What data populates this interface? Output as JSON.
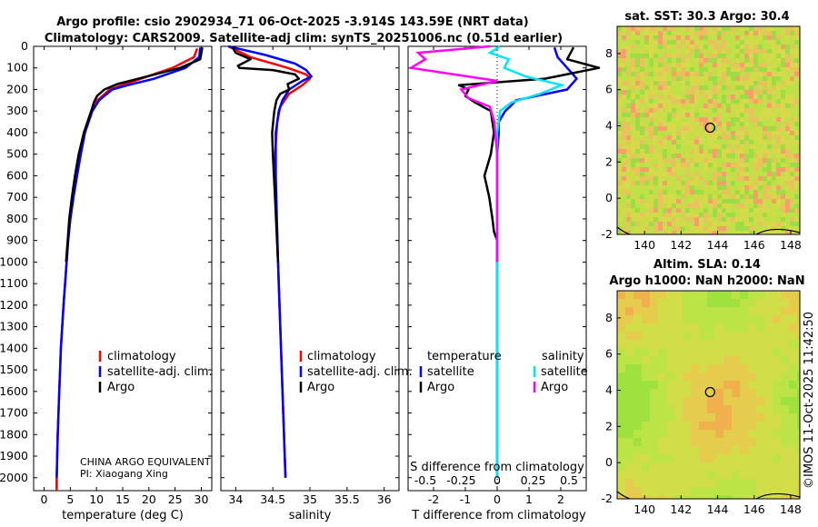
{
  "figure": {
    "title_line1": "Argo profile: csio 2902934_71 06-Oct-2025 -3.914S 143.59E (NRT data)",
    "title_line2": "Climatology: CARS2009. Satellite-adj clim: synTS_20251006.nc (0.51d earlier)",
    "sst_title": "sat. SST: 30.3 Argo: 30.4",
    "sla_title1": "Altim. SLA: 0.14",
    "sla_title2": "Argo h1000: NaN h2000: NaN",
    "timestamp": "©IMOS 11-Oct-2025 11:42:50",
    "owner": "CHINA ARGO EQUIVALENT",
    "pi": "PI: Xiaogang Xing",
    "s_diff_label": "S difference from climatology",
    "colors": {
      "climatology": "#ff0000",
      "satellite": "#0000ff",
      "argo": "#000000",
      "satellite_s": "#00e5ff",
      "argo_s": "#ff00ff"
    }
  },
  "depth_ticks": [
    "0",
    "100",
    "200",
    "300",
    "400",
    "500",
    "600",
    "700",
    "800",
    "900",
    "1000",
    "1100",
    "1200",
    "1300",
    "1400",
    "1500",
    "1600",
    "1700",
    "1800",
    "1900",
    "2000"
  ],
  "chart_data": [
    {
      "type": "line",
      "name": "temperature",
      "xlabel": "temperature (deg C)",
      "ylabel": "depth",
      "xlim": [
        -2,
        32
      ],
      "ylim": [
        2060,
        0
      ],
      "xticks": [
        "0",
        "5",
        "10",
        "15",
        "20",
        "25",
        "30"
      ],
      "legend": [
        "climatology",
        "satellite-adj. clim.",
        "Argo"
      ],
      "series": [
        {
          "name": "climatology",
          "depth": [
            10,
            50,
            100,
            150,
            180,
            200,
            250,
            300,
            400,
            500,
            600,
            700,
            800,
            900,
            1000,
            1200,
            1400,
            1600,
            1800,
            2000,
            2050
          ],
          "values": [
            29.2,
            28.6,
            24.5,
            18.5,
            15,
            12.5,
            10.2,
            9,
            7.6,
            6.9,
            6.2,
            5.6,
            5,
            4.6,
            4.3,
            3.7,
            3.2,
            2.9,
            2.6,
            2.4,
            2.4
          ]
        },
        {
          "name": "satellite-adj. clim.",
          "depth": [
            5,
            50,
            100,
            150,
            180,
            200,
            250,
            300,
            400,
            500,
            600,
            700,
            800,
            900,
            1000,
            1200,
            1400,
            1600,
            1800,
            2000
          ],
          "values": [
            29.8,
            29.6,
            27,
            21,
            16,
            13,
            10.5,
            9.2,
            7.8,
            7,
            6.3,
            5.6,
            5,
            4.6,
            4.3,
            3.7,
            3.2,
            2.9,
            2.6,
            2.4
          ]
        },
        {
          "name": "Argo",
          "depth": [
            5,
            60,
            100,
            150,
            175,
            200,
            230,
            260,
            300,
            400,
            500,
            600,
            700,
            800,
            900,
            1000
          ],
          "values": [
            30.2,
            29.8,
            26,
            18,
            14,
            11.5,
            10.1,
            9.5,
            9,
            7.6,
            6.6,
            5.9,
            5.3,
            4.8,
            4.5,
            4.2
          ]
        }
      ]
    },
    {
      "type": "line",
      "name": "salinity",
      "xlabel": "salinity",
      "xlim": [
        33.8,
        36.2
      ],
      "ylim": [
        2060,
        0
      ],
      "xticks": [
        "34",
        "34.5",
        "35",
        "35.5",
        "36"
      ],
      "legend": [
        "climatology",
        "satellite-adj. clim.",
        "Argo"
      ],
      "series": [
        {
          "name": "climatology",
          "depth": [
            0,
            50,
            100,
            130,
            150,
            180,
            220,
            280,
            350,
            500,
            800,
            1000,
            1500,
            2000
          ],
          "values": [
            33.9,
            34.2,
            34.7,
            34.95,
            35,
            34.9,
            34.72,
            34.6,
            34.56,
            34.53,
            34.55,
            34.57,
            34.62,
            34.67
          ]
        },
        {
          "name": "satellite-adj. clim.",
          "depth": [
            0,
            40,
            80,
            110,
            140,
            160,
            200,
            250,
            300,
            400,
            600,
            1000,
            1500,
            2000
          ],
          "values": [
            33.9,
            34.4,
            34.8,
            34.95,
            35.02,
            34.9,
            34.72,
            34.63,
            34.58,
            34.54,
            34.54,
            34.57,
            34.62,
            34.67
          ]
        },
        {
          "name": "Argo",
          "depth": [
            0,
            30,
            60,
            90,
            100,
            110,
            130,
            150,
            175,
            200,
            220,
            250,
            300,
            400,
            500,
            700,
            1000
          ],
          "values": [
            33.95,
            34.0,
            34.2,
            34.03,
            34.05,
            34.5,
            34.8,
            34.85,
            34.7,
            34.72,
            34.6,
            34.55,
            34.52,
            34.49,
            34.5,
            34.53,
            34.57
          ]
        }
      ]
    },
    {
      "type": "line",
      "name": "difference",
      "xlabel": "T difference from climatology",
      "xlim": [
        -2.8,
        2.8
      ],
      "ylim": [
        2060,
        0
      ],
      "xticks": [
        "-2",
        "-1",
        "0",
        "1",
        "2"
      ],
      "s_xticks": [
        "-0.5",
        "-0.25",
        "0",
        "0.25",
        "0.5"
      ],
      "legend_headers": [
        "temperature",
        "salinity"
      ],
      "legend": [
        "satellite",
        "Argo",
        "satellite",
        "Argo"
      ],
      "series": [
        {
          "name": "T satellite",
          "depth": [
            5,
            50,
            100,
            150,
            200,
            250,
            280,
            300,
            350,
            400,
            500,
            700,
            1000,
            1500,
            2000
          ],
          "values": [
            1.8,
            1.9,
            2.2,
            2.5,
            2.2,
            0.6,
            0.4,
            0.25,
            0.05,
            0.05,
            0,
            0,
            0,
            0,
            0
          ]
        },
        {
          "name": "T Argo",
          "depth": [
            5,
            60,
            100,
            150,
            180,
            200,
            230,
            260,
            300,
            400,
            500,
            600,
            700,
            800,
            860,
            900,
            1000
          ],
          "values": [
            2.4,
            2.2,
            3.2,
            1.5,
            -1.2,
            -0.9,
            -1,
            -0.7,
            -0.2,
            -0.1,
            -0.2,
            -0.4,
            -0.25,
            -0.15,
            -0.1,
            0,
            0
          ]
        },
        {
          "name": "S satellite",
          "depth": [
            0,
            30,
            60,
            100,
            140,
            180,
            220,
            260,
            300,
            400,
            600,
            1000,
            1500,
            2000
          ],
          "values": [
            0.02,
            -0.05,
            0.08,
            0.05,
            0.2,
            0.45,
            0.3,
            0.1,
            0.02,
            0,
            0,
            0,
            0,
            0
          ]
        },
        {
          "name": "S Argo",
          "depth": [
            0,
            30,
            60,
            100,
            130,
            160,
            200,
            240,
            280,
            350,
            500,
            800,
            1000
          ],
          "values": [
            -0.05,
            -0.55,
            -0.5,
            -0.6,
            -0.3,
            0,
            -0.25,
            -0.2,
            -0.05,
            -0.02,
            0,
            0,
            0
          ]
        }
      ]
    },
    {
      "type": "heatmap",
      "name": "sst_map",
      "title": "sat. SST: 30.3 Argo: 30.4",
      "xlim": [
        138.5,
        148.5
      ],
      "ylim": [
        -2,
        9.5
      ],
      "xticks": [
        "140",
        "142",
        "144",
        "146",
        "148"
      ],
      "yticks": [
        "-2",
        "0",
        "2",
        "4",
        "6",
        "8"
      ],
      "argo_location": [
        143.59,
        3.9
      ]
    },
    {
      "type": "heatmap",
      "name": "sla_map",
      "title": "Altim. SLA: 0.14",
      "xlim": [
        138.5,
        148.5
      ],
      "ylim": [
        -2,
        9.5
      ],
      "xticks": [
        "140",
        "142",
        "144",
        "146",
        "148"
      ],
      "yticks": [
        "-2",
        "0",
        "2",
        "4",
        "6",
        "8"
      ],
      "argo_location": [
        143.59,
        3.9
      ]
    }
  ]
}
